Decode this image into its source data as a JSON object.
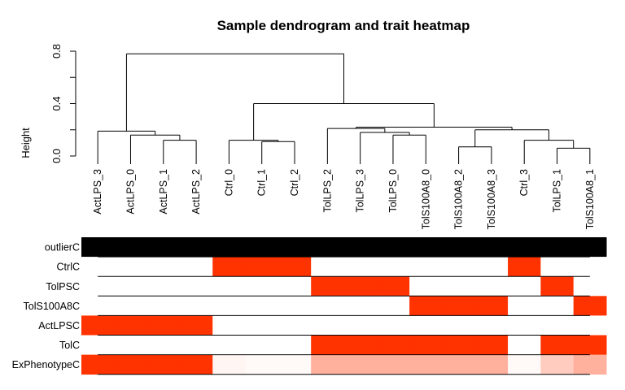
{
  "chart_data": {
    "type": "dendrogram-heatmap",
    "title": "Sample dendrogram and trait heatmap",
    "ylabel": "Height",
    "ylim": [
      0,
      0.8
    ],
    "yticks": [
      "0.0",
      "0.4",
      "0.8"
    ],
    "ytick_values": [
      0.0,
      0.4,
      0.8
    ],
    "minor_ytick_values": [
      0.2,
      0.6
    ],
    "leaves": [
      "ActLPS_3",
      "ActLPS_0",
      "ActLPS_1",
      "ActLPS_2",
      "Ctrl_0",
      "Ctrl_1",
      "Ctrl_2",
      "TolLPS_2",
      "TolLPS_3",
      "TolLPS_0",
      "TolS100A8_0",
      "TolS100A8_2",
      "TolS100A8_3",
      "Ctrl_3",
      "TolLPS_1",
      "TolS100A8_1"
    ],
    "merges": [
      {
        "left": "L2",
        "right": "L3",
        "height": 0.12
      },
      {
        "left": "L1",
        "right": "M0",
        "height": 0.16
      },
      {
        "left": "L0",
        "right": "M1",
        "height": 0.19
      },
      {
        "left": "L5",
        "right": "L6",
        "height": 0.11
      },
      {
        "left": "L4",
        "right": "M3",
        "height": 0.12
      },
      {
        "left": "L9",
        "right": "L10",
        "height": 0.16
      },
      {
        "left": "L8",
        "right": "M5",
        "height": 0.18
      },
      {
        "left": "L7",
        "right": "M6",
        "height": 0.21
      },
      {
        "left": "L11",
        "right": "L12",
        "height": 0.07
      },
      {
        "left": "L14",
        "right": "L15",
        "height": 0.06
      },
      {
        "left": "L13",
        "right": "M9",
        "height": 0.12
      },
      {
        "left": "M8",
        "right": "M10",
        "height": 0.2
      },
      {
        "left": "M7",
        "right": "M11",
        "height": 0.22
      },
      {
        "left": "M4",
        "right": "M12",
        "height": 0.4
      },
      {
        "left": "M2",
        "right": "M13",
        "height": 0.78
      }
    ],
    "trait_rows": [
      "outlierC",
      "CtrlC",
      "TolPSC",
      "TolS100A8C",
      "ActLPSC",
      "TolC",
      "ExPhenotypeC"
    ],
    "trait_values": [
      [
        1,
        1,
        1,
        1,
        1,
        1,
        1,
        1,
        1,
        1,
        1,
        1,
        1,
        1,
        1,
        1
      ],
      [
        0,
        0,
        0,
        0,
        1,
        1,
        1,
        0,
        0,
        0,
        0,
        0,
        0,
        1,
        0,
        0
      ],
      [
        0,
        0,
        0,
        0,
        0,
        0,
        0,
        1,
        1,
        1,
        0,
        0,
        0,
        0,
        1,
        0
      ],
      [
        0,
        0,
        0,
        0,
        0,
        0,
        0,
        0,
        0,
        0,
        1,
        1,
        1,
        0,
        0,
        1
      ],
      [
        1,
        1,
        1,
        1,
        0,
        0,
        0,
        0,
        0,
        0,
        0,
        0,
        0,
        0,
        0,
        0
      ],
      [
        0,
        0,
        0,
        0,
        0,
        0,
        0,
        1,
        1,
        1,
        1,
        1,
        1,
        0,
        1,
        1
      ],
      [
        1,
        1,
        1,
        1,
        0.05,
        0.03,
        0.03,
        0.38,
        0.38,
        0.38,
        0.38,
        0.38,
        0.38,
        0.03,
        0.25,
        0.38
      ]
    ],
    "colors": {
      "high": "#ff3300",
      "low": "#ffffff",
      "binary_high": "#000000",
      "line": "#000000"
    }
  }
}
